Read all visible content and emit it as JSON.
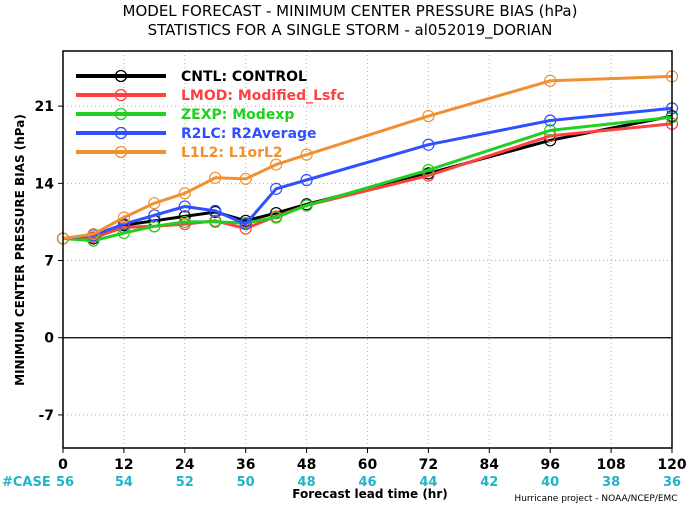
{
  "chart_data": {
    "type": "line",
    "title": "MODEL FORECAST - MINIMUM CENTER PRESSURE BIAS (hPa)",
    "subtitle": "STATISTICS FOR A SINGLE STORM - al052019_DORIAN",
    "xlabel": "Forecast lead time (hr)",
    "ylabel": "MINIMUM CENTER PRESSURE BIAS (hPa)",
    "credit": "Hurricane project - NOAA/NCEP/EMC",
    "xlim": [
      0,
      120
    ],
    "ylim": [
      -10,
      26
    ],
    "x_ticks": [
      0,
      12,
      24,
      36,
      48,
      60,
      72,
      84,
      96,
      108,
      120
    ],
    "y_ticks": [
      -7,
      0,
      7,
      14,
      21
    ],
    "case_label": "#CASE",
    "case_counts": [
      {
        "x": 0,
        "n": "56"
      },
      {
        "x": 12,
        "n": "54"
      },
      {
        "x": 24,
        "n": "52"
      },
      {
        "x": 36,
        "n": "50"
      },
      {
        "x": 48,
        "n": "48"
      },
      {
        "x": 60,
        "n": "46"
      },
      {
        "x": 72,
        "n": "44"
      },
      {
        "x": 84,
        "n": "42"
      },
      {
        "x": 96,
        "n": "40"
      },
      {
        "x": 108,
        "n": "38"
      },
      {
        "x": 120,
        "n": "36"
      }
    ],
    "zero_line": true,
    "grid": true,
    "legend_position": "top-left",
    "series": [
      {
        "name": "CNTL: CONTROL",
        "color": "#000000",
        "x": [
          0,
          6,
          12,
          18,
          24,
          30,
          36,
          42,
          48,
          72,
          96,
          120
        ],
        "y": [
          9.0,
          9.0,
          10.2,
          10.6,
          11.0,
          11.4,
          10.6,
          11.3,
          12.1,
          14.9,
          17.9,
          20.1
        ]
      },
      {
        "name": "LMOD: Modified_Lsfc",
        "color": "#ff4040",
        "x": [
          0,
          6,
          12,
          18,
          24,
          30,
          36,
          42,
          48,
          72,
          96,
          120
        ],
        "y": [
          9.0,
          9.1,
          10.0,
          10.1,
          10.3,
          10.6,
          9.9,
          11.0,
          12.0,
          14.7,
          18.3,
          19.4
        ]
      },
      {
        "name": "ZEXP: Modexp",
        "color": "#20d020",
        "x": [
          0,
          6,
          12,
          18,
          24,
          30,
          36,
          42,
          48,
          72,
          96,
          120
        ],
        "y": [
          9.0,
          8.8,
          9.5,
          10.1,
          10.5,
          10.5,
          10.4,
          10.9,
          12.0,
          15.2,
          18.8,
          20.0
        ]
      },
      {
        "name": "R2LC: R2Average",
        "color": "#3050ff",
        "x": [
          0,
          6,
          12,
          18,
          24,
          30,
          36,
          42,
          48,
          72,
          96,
          120
        ],
        "y": [
          9.0,
          9.3,
          10.3,
          11.1,
          11.9,
          11.5,
          10.3,
          13.5,
          14.3,
          17.5,
          19.7,
          20.8
        ]
      },
      {
        "name": "L1L2: L1orL2",
        "color": "#f09030",
        "x": [
          0,
          6,
          12,
          18,
          24,
          30,
          36,
          42,
          48,
          72,
          96,
          120
        ],
        "y": [
          9.0,
          9.4,
          10.9,
          12.2,
          13.1,
          14.5,
          14.4,
          15.7,
          16.6,
          20.1,
          23.3,
          23.7
        ]
      }
    ]
  }
}
